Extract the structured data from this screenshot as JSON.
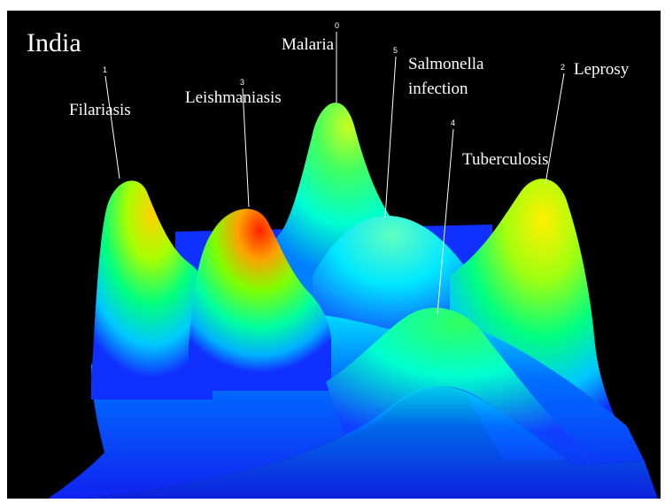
{
  "chart_data": {
    "type": "surface",
    "title": "India",
    "peaks": [
      {
        "index": "0",
        "name": "Malaria",
        "height": 0.78
      },
      {
        "index": "1",
        "name": "Filariasis",
        "height": 0.88
      },
      {
        "index": "2",
        "name": "Leprosy",
        "height": 0.88
      },
      {
        "index": "3",
        "name": "Leishmaniasis",
        "height": 1.0
      },
      {
        "index": "4",
        "name": "Tuberculosis",
        "height": 0.7
      },
      {
        "index": "5",
        "name": "Salmonella infection",
        "height": 0.45
      }
    ],
    "colorscale": [
      "#0000ff",
      "#00ffff",
      "#00ff00",
      "#ffff00",
      "#ff0000"
    ],
    "background": "#000000"
  }
}
